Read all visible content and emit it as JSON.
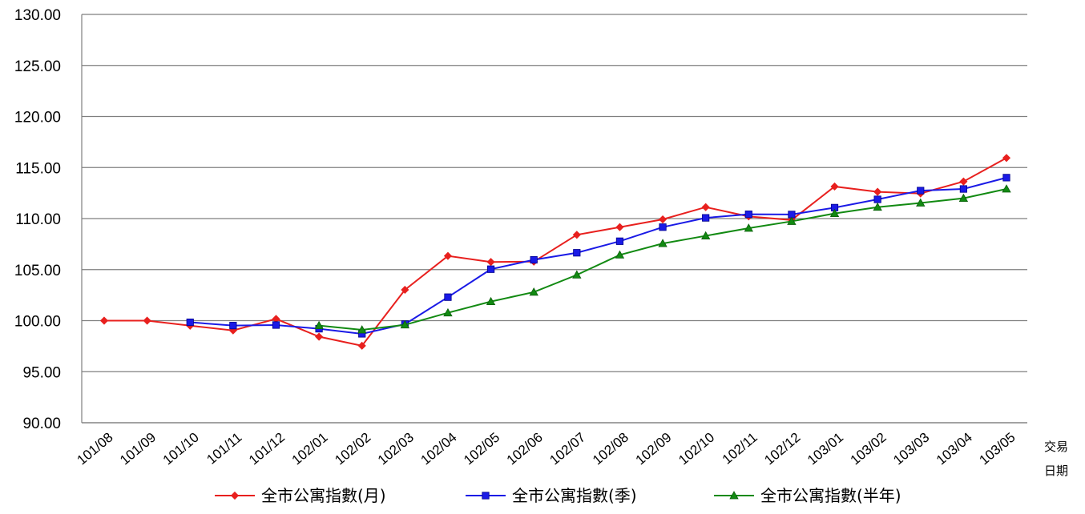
{
  "chart_data": {
    "type": "line",
    "title": "",
    "x_axis_label_line1": "交易",
    "x_axis_label_line2": "日期",
    "ylabel": "",
    "ylim": [
      90,
      130
    ],
    "y_ticks": [
      "90.00",
      "95.00",
      "100.00",
      "105.00",
      "110.00",
      "115.00",
      "120.00",
      "125.00",
      "130.00"
    ],
    "grid": true,
    "legend_position": "bottom",
    "categories": [
      "101/08",
      "101/09",
      "101/10",
      "101/11",
      "101/12",
      "102/01",
      "102/02",
      "102/03",
      "102/04",
      "102/05",
      "102/06",
      "102/07",
      "102/08",
      "102/09",
      "102/10",
      "102/11",
      "102/12",
      "103/01",
      "103/02",
      "103/03",
      "103/04",
      "103/05"
    ],
    "series": [
      {
        "name": "全市公寓指數(月)",
        "color": "#e8201e",
        "marker": "diamond",
        "values": [
          100.0,
          100.0,
          99.51,
          99.04,
          100.17,
          98.43,
          97.54,
          103.02,
          106.34,
          105.75,
          105.78,
          108.41,
          109.16,
          109.92,
          111.12,
          110.21,
          109.86,
          113.14,
          112.62,
          112.46,
          113.63,
          115.94
        ]
      },
      {
        "name": "全市公寓指數(季)",
        "color": "#1a1ae6",
        "marker": "square",
        "values": [
          null,
          null,
          99.84,
          99.52,
          99.57,
          99.21,
          98.71,
          99.66,
          102.3,
          105.04,
          105.96,
          106.65,
          107.78,
          109.16,
          110.07,
          110.42,
          110.4,
          111.07,
          111.88,
          112.74,
          112.9,
          114.01
        ]
      },
      {
        "name": "全市公寓指數(半年)",
        "color": "#128a12",
        "marker": "triangle",
        "values": [
          null,
          null,
          null,
          null,
          null,
          99.52,
          99.1,
          99.59,
          100.77,
          101.87,
          102.8,
          104.48,
          106.44,
          107.56,
          108.31,
          109.06,
          109.73,
          110.5,
          111.12,
          111.53,
          111.99,
          112.9
        ]
      }
    ]
  }
}
